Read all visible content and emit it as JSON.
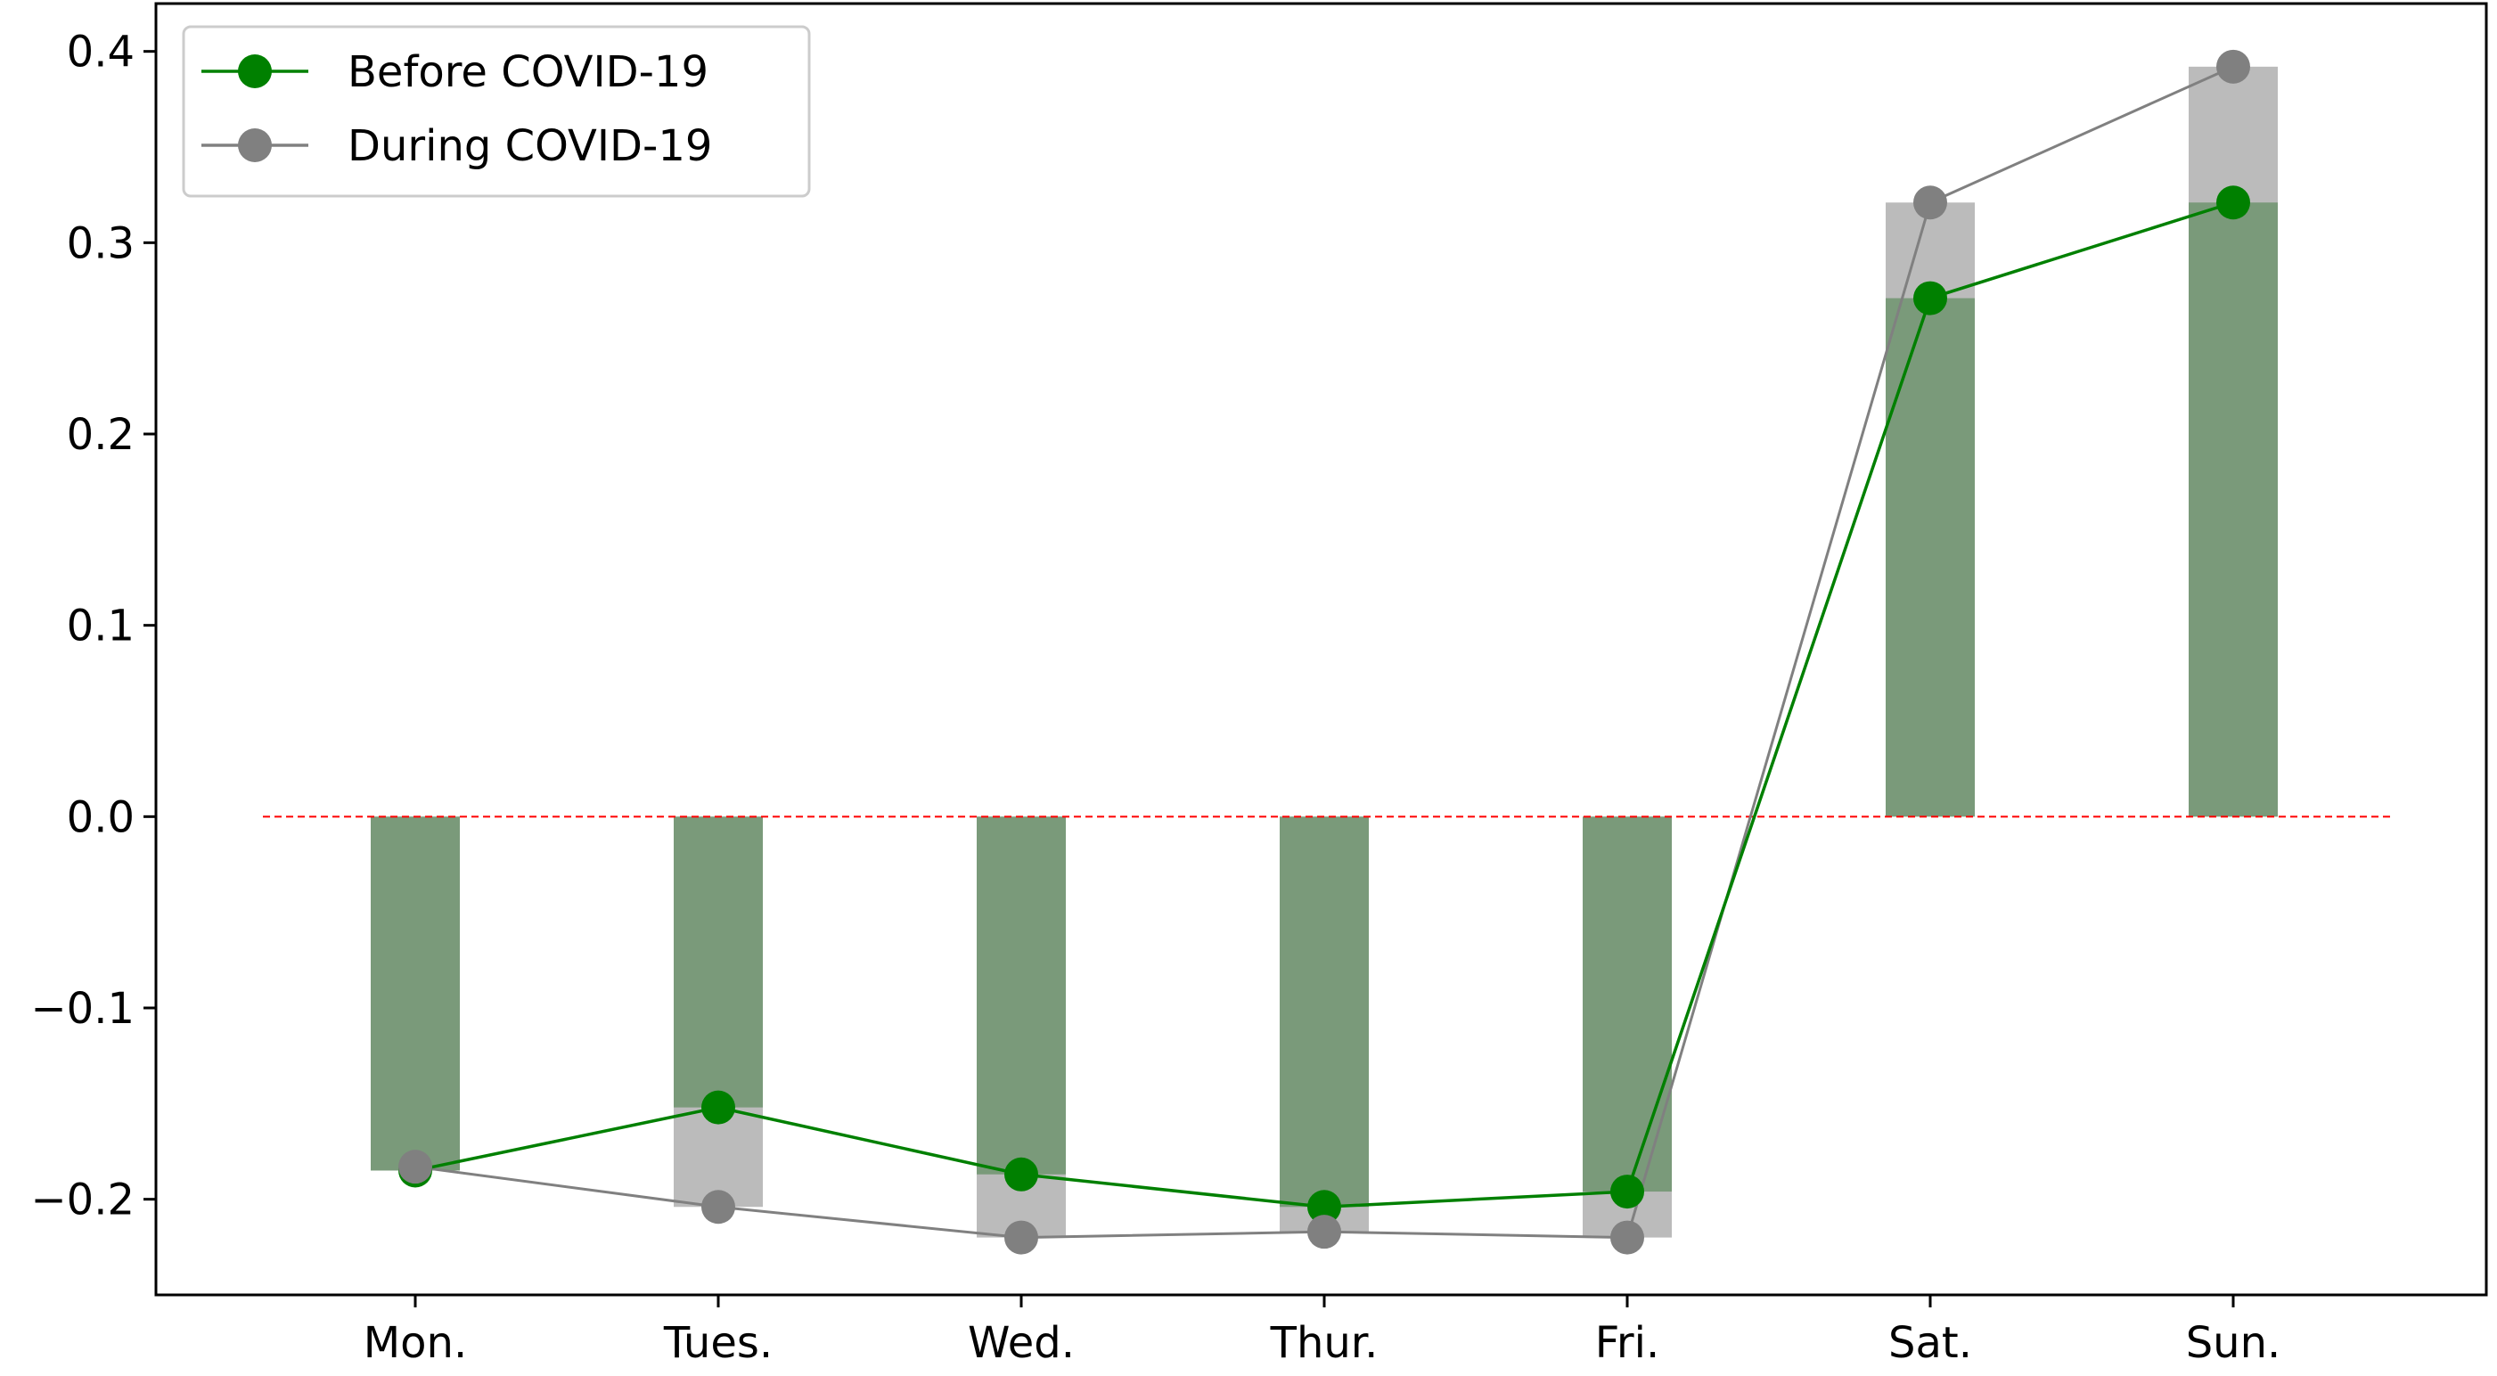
{
  "chart_data": {
    "type": "bar",
    "title": "",
    "xlabel": "",
    "ylabel": "",
    "categories": [
      "Mon.",
      "Tues.",
      "Wed.",
      "Thur.",
      "Fri.",
      "Sat.",
      "Sun."
    ],
    "ylim": [
      -0.25,
      0.425
    ],
    "yticks": [
      -0.2,
      -0.1,
      0.0,
      0.1,
      0.2,
      0.3,
      0.4
    ],
    "ytick_labels": [
      "−0.2",
      "−0.1",
      "0.0",
      "0.1",
      "0.2",
      "0.3",
      "0.4"
    ],
    "series": [
      {
        "name": "Before COVID-19",
        "color": "#008000",
        "bar_color": "#7a9a7a",
        "values": [
          -0.185,
          -0.152,
          -0.187,
          -0.204,
          -0.196,
          0.271,
          0.321
        ]
      },
      {
        "name": "During COVID-19",
        "color": "#808080",
        "bar_color": "#bbbbbb",
        "values": [
          -0.183,
          -0.204,
          -0.22,
          -0.217,
          -0.22,
          0.321,
          0.392
        ]
      }
    ],
    "reference_line": {
      "y": 0.0,
      "color": "#ff0000",
      "style": "dashed"
    },
    "legend_position": "top-left",
    "grid": false
  }
}
